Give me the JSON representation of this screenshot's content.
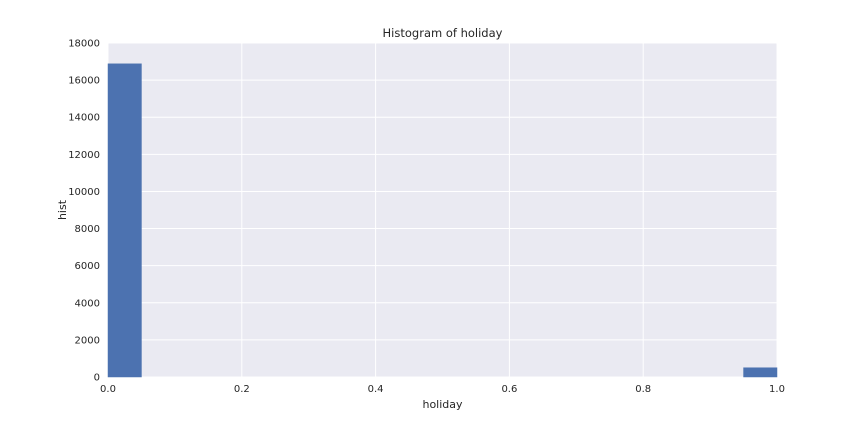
{
  "chart_data": {
    "type": "bar",
    "title": "Histogram of holiday",
    "xlabel": "holiday",
    "ylabel": "hist",
    "xlim": [
      0.0,
      1.0
    ],
    "ylim": [
      0,
      18000
    ],
    "xticks": [
      "0.0",
      "0.2",
      "0.4",
      "0.6",
      "0.8",
      "1.0"
    ],
    "yticks": [
      "0",
      "2000",
      "4000",
      "6000",
      "8000",
      "10000",
      "12000",
      "14000",
      "16000",
      "18000"
    ],
    "bins": [
      {
        "x0": 0.0,
        "x1": 0.05,
        "count": 16879
      },
      {
        "x0": 0.05,
        "x1": 0.1,
        "count": 0
      },
      {
        "x0": 0.1,
        "x1": 0.15,
        "count": 0
      },
      {
        "x0": 0.15,
        "x1": 0.2,
        "count": 0
      },
      {
        "x0": 0.2,
        "x1": 0.25,
        "count": 0
      },
      {
        "x0": 0.25,
        "x1": 0.3,
        "count": 0
      },
      {
        "x0": 0.3,
        "x1": 0.35,
        "count": 0
      },
      {
        "x0": 0.35,
        "x1": 0.4,
        "count": 0
      },
      {
        "x0": 0.4,
        "x1": 0.45,
        "count": 0
      },
      {
        "x0": 0.45,
        "x1": 0.5,
        "count": 0
      },
      {
        "x0": 0.5,
        "x1": 0.55,
        "count": 0
      },
      {
        "x0": 0.55,
        "x1": 0.6,
        "count": 0
      },
      {
        "x0": 0.6,
        "x1": 0.65,
        "count": 0
      },
      {
        "x0": 0.65,
        "x1": 0.7,
        "count": 0
      },
      {
        "x0": 0.7,
        "x1": 0.75,
        "count": 0
      },
      {
        "x0": 0.75,
        "x1": 0.8,
        "count": 0
      },
      {
        "x0": 0.8,
        "x1": 0.85,
        "count": 0
      },
      {
        "x0": 0.85,
        "x1": 0.9,
        "count": 0
      },
      {
        "x0": 0.9,
        "x1": 0.95,
        "count": 0
      },
      {
        "x0": 0.95,
        "x1": 1.0,
        "count": 500
      }
    ],
    "grid": true,
    "colors": {
      "bar": "#4c72b0",
      "plot_background": "#eaeaf2",
      "grid": "#ffffff"
    }
  }
}
